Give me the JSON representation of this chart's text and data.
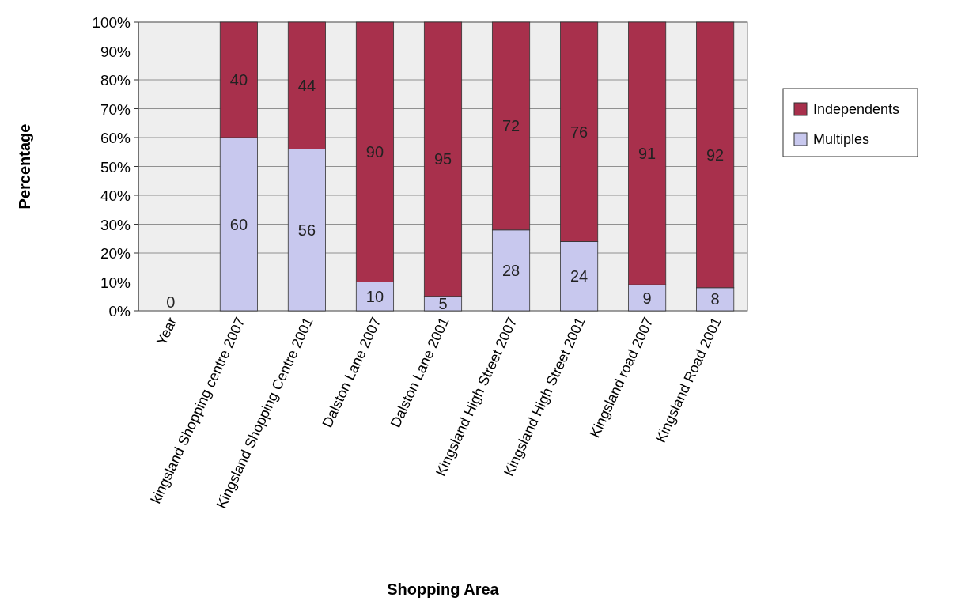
{
  "chart_data": {
    "type": "bar",
    "stacked": true,
    "xlabel": "Shopping Area",
    "ylabel": "Percentage",
    "categories": [
      "Year",
      "kingsland Shopping centre 2007",
      "Kingsland Shopping Centre 2001",
      "Dalston Lane 2007",
      "Dalston Lane 2001",
      "Kingsland High Street 2007",
      "Kingsland High Street 2001",
      "Kingsland road 2007",
      "Kingsland Road 2001"
    ],
    "series": [
      {
        "name": "Multiples",
        "color": "#c8c8ee",
        "values": [
          0,
          60,
          56,
          10,
          5,
          28,
          24,
          9,
          8
        ],
        "value_labels": [
          "0",
          "60",
          "56",
          "10",
          "5",
          "28",
          "24",
          "9",
          "8"
        ]
      },
      {
        "name": "Independents",
        "color": "#a8304c",
        "values": [
          0,
          40,
          44,
          90,
          95,
          72,
          76,
          91,
          92
        ],
        "value_labels": [
          null,
          "40",
          "44",
          "90",
          "95",
          "72",
          "76",
          "91",
          "92"
        ]
      }
    ],
    "ylim": [
      0,
      100
    ],
    "yticks": [
      {
        "value": 0,
        "label": "0%"
      },
      {
        "value": 10,
        "label": "10%"
      },
      {
        "value": 20,
        "label": "20%"
      },
      {
        "value": 30,
        "label": "30%"
      },
      {
        "value": 40,
        "label": "40%"
      },
      {
        "value": 50,
        "label": "50%"
      },
      {
        "value": 60,
        "label": "60%"
      },
      {
        "value": 70,
        "label": "70%"
      },
      {
        "value": 80,
        "label": "80%"
      },
      {
        "value": 90,
        "label": "90%"
      },
      {
        "value": 100,
        "label": "100%"
      }
    ],
    "grid": "y",
    "legend": "right"
  }
}
